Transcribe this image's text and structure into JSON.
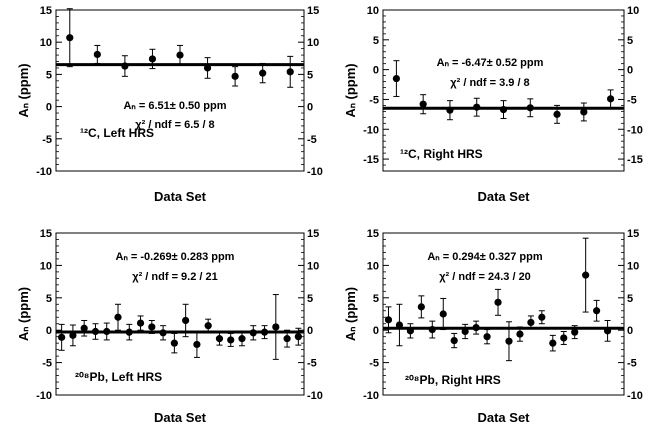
{
  "chart_data": [
    {
      "type": "scatter",
      "panel_label": "¹²C, Left HRS",
      "xlabel": "Data Set",
      "ylabel": "Aₙ (ppm)",
      "ylim": [
        -10,
        15
      ],
      "yticks": [
        -10,
        -5,
        0,
        5,
        10,
        15
      ],
      "fit_value": 6.51,
      "annotations": [
        "Aₙ = 6.51± 0.50 ppm",
        "χ² / ndf = 6.5 / 8"
      ],
      "series": [
        {
          "x": [
            1,
            2,
            3,
            4,
            5,
            6,
            7,
            8,
            9
          ],
          "y": [
            10.7,
            8.1,
            6.3,
            7.4,
            8.0,
            6.0,
            4.7,
            5.2,
            5.4
          ],
          "err": [
            4.5,
            1.4,
            1.6,
            1.5,
            1.5,
            1.6,
            1.5,
            1.5,
            2.4
          ]
        }
      ]
    },
    {
      "type": "scatter",
      "panel_label": "¹²C, Right HRS",
      "xlabel": "Data Set",
      "ylabel": "Aₙ (ppm)",
      "ylim": [
        -17,
        10
      ],
      "yticks": [
        -15,
        -10,
        -5,
        0,
        5,
        10
      ],
      "fit_value": -6.47,
      "annotations": [
        "Aₙ = -6.47± 0.52 ppm",
        "χ² / ndf = 3.9 / 8"
      ],
      "series": [
        {
          "x": [
            1,
            2,
            3,
            4,
            5,
            6,
            7,
            8,
            9
          ],
          "y": [
            -1.5,
            -5.8,
            -6.8,
            -6.3,
            -6.7,
            -6.4,
            -7.5,
            -7.1,
            -4.9
          ],
          "err": [
            3.0,
            1.6,
            1.6,
            1.5,
            1.5,
            1.5,
            1.5,
            1.5,
            1.5
          ]
        }
      ]
    },
    {
      "type": "scatter",
      "panel_label": "²⁰⁸Pb, Left HRS",
      "xlabel": "Data Set",
      "ylabel": "Aₙ (ppm)",
      "ylim": [
        -10,
        15
      ],
      "yticks": [
        -10,
        -5,
        0,
        5,
        10,
        15
      ],
      "fit_value": -0.269,
      "annotations": [
        "Aₙ = -0.269± 0.283 ppm",
        "χ² / ndf = 9.2 / 21"
      ],
      "series": [
        {
          "x": [
            1,
            2,
            3,
            4,
            5,
            6,
            7,
            8,
            9,
            10,
            11,
            12,
            13,
            14,
            15,
            16,
            17,
            18,
            19,
            20,
            21,
            22
          ],
          "y": [
            -1.1,
            -0.8,
            0.3,
            -0.2,
            -0.2,
            2.0,
            -0.3,
            1.1,
            0.5,
            -0.4,
            -2.0,
            1.5,
            -2.2,
            0.7,
            -1.3,
            -1.5,
            -1.3,
            -0.4,
            -0.3,
            0.5,
            -1.3,
            -1.0
          ],
          "err": [
            2.0,
            1.6,
            1.2,
            1.2,
            1.3,
            2.0,
            1.2,
            1.1,
            1.0,
            1.1,
            1.5,
            2.5,
            2.0,
            1.0,
            1.0,
            1.0,
            1.1,
            1.1,
            1.0,
            5.0,
            1.3,
            1.3
          ]
        }
      ]
    },
    {
      "type": "scatter",
      "panel_label": "²⁰⁸Pb, Right HRS",
      "xlabel": "Data Set",
      "ylabel": "Aₙ (ppm)",
      "ylim": [
        -10,
        15
      ],
      "yticks": [
        -10,
        -5,
        0,
        5,
        10,
        15
      ],
      "fit_value": 0.294,
      "annotations": [
        "Aₙ = 0.294± 0.327 ppm",
        "χ² / ndf = 24.3 / 20"
      ],
      "series": [
        {
          "x": [
            1,
            2,
            3,
            4,
            5,
            6,
            7,
            8,
            9,
            10,
            11,
            12,
            13,
            14,
            15,
            16,
            17,
            18,
            19,
            20,
            21,
            22
          ],
          "y": [
            1.6,
            0.8,
            -0.1,
            3.6,
            0.1,
            2.5,
            -1.6,
            -0.2,
            0.4,
            -1.0,
            4.3,
            -1.7,
            -0.6,
            1.2,
            2.0,
            -2.0,
            -1.2,
            -0.3,
            8.5,
            3.0,
            -0.1,
            null
          ],
          "err": [
            2.0,
            3.2,
            1.1,
            1.7,
            1.3,
            2.4,
            1.1,
            1.1,
            1.0,
            1.1,
            2.0,
            3.0,
            1.1,
            1.0,
            1.0,
            1.2,
            1.0,
            1.0,
            5.7,
            1.6,
            1.6,
            null
          ]
        }
      ]
    }
  ]
}
